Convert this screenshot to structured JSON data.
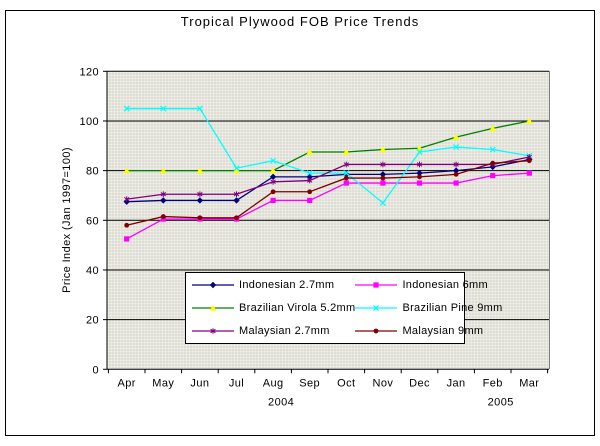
{
  "title": "Tropical Plywood FOB Price Trends",
  "y_axis": {
    "title": "Price Index (Jan 1997=100)",
    "ticks": [
      0,
      20,
      40,
      60,
      80,
      100,
      120
    ]
  },
  "x_axis": {
    "months": [
      "Apr",
      "May",
      "Jun",
      "Jul",
      "Aug",
      "Sep",
      "Oct",
      "Nov",
      "Dec",
      "Jan",
      "Feb",
      "Mar"
    ],
    "years": [
      {
        "label": "2004",
        "month_index": 4
      },
      {
        "label": "2005",
        "month_index": 10
      }
    ]
  },
  "chart_data": {
    "type": "line",
    "title": "Tropical Plywood FOB Price Trends",
    "ylabel": "Price Index (Jan 1997=100)",
    "xlabel": "",
    "ylim": [
      0,
      120
    ],
    "grid": true,
    "legend_position": "bottom-center",
    "plot_background": "#DEDED6",
    "gridline_color": "#000000",
    "categories": [
      "Apr",
      "May",
      "Jun",
      "Jul",
      "Aug",
      "Sep",
      "Oct",
      "Nov",
      "Dec",
      "Jan",
      "Feb",
      "Mar"
    ],
    "series": [
      {
        "name": "Indonesian 2.7mm",
        "color": "#000080",
        "marker": "diamond",
        "marker_color": "#000080",
        "values": [
          67.5,
          68,
          68,
          68,
          77.5,
          77.5,
          78.5,
          78.5,
          79,
          80,
          81.5,
          84.5
        ]
      },
      {
        "name": "Indonesian 6mm",
        "color": "#FF00FF",
        "marker": "square",
        "marker_color": "#FF00FF",
        "values": [
          52.5,
          60.5,
          60.5,
          60.5,
          68,
          68,
          75,
          75,
          75,
          75,
          78,
          79
        ]
      },
      {
        "name": "Brazilian Virola 5.2mm",
        "color": "#008000",
        "marker": "triangle",
        "marker_color": "#FFFF00",
        "values": [
          80,
          80,
          80,
          80,
          80,
          87.5,
          87.5,
          88.5,
          89,
          93.5,
          97,
          100
        ]
      },
      {
        "name": "Brazilian Pine 9mm",
        "color": "#00FFFF",
        "marker": "x",
        "marker_color": "#00FFFF",
        "values": [
          105,
          105,
          105,
          81,
          84,
          79,
          79,
          67,
          87.5,
          89.5,
          88.5,
          86
        ]
      },
      {
        "name": "Malaysian 2.7mm",
        "color": "#800080",
        "marker": "star",
        "marker_color": "#800080",
        "values": [
          68.5,
          70.5,
          70.5,
          70.5,
          75.5,
          76,
          82.5,
          82.5,
          82.5,
          82.5,
          82.5,
          85.5
        ]
      },
      {
        "name": "Malaysian 9mm",
        "color": "#800000",
        "marker": "circle",
        "marker_color": "#800000",
        "values": [
          58,
          61.5,
          61,
          61,
          71.5,
          71.5,
          77,
          77,
          77.5,
          78.5,
          83,
          84
        ]
      }
    ]
  }
}
